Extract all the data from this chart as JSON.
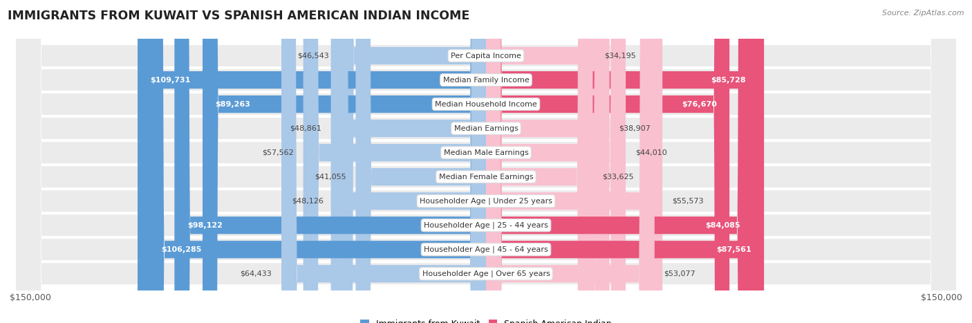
{
  "title": "IMMIGRANTS FROM KUWAIT VS SPANISH AMERICAN INDIAN INCOME",
  "source": "Source: ZipAtlas.com",
  "categories": [
    "Per Capita Income",
    "Median Family Income",
    "Median Household Income",
    "Median Earnings",
    "Median Male Earnings",
    "Median Female Earnings",
    "Householder Age | Under 25 years",
    "Householder Age | 25 - 44 years",
    "Householder Age | 45 - 64 years",
    "Householder Age | Over 65 years"
  ],
  "kuwait_values": [
    46543,
    109731,
    89263,
    48861,
    57562,
    41055,
    48126,
    98122,
    106285,
    64433
  ],
  "spanish_values": [
    34195,
    85728,
    76670,
    38907,
    44010,
    33625,
    55573,
    84085,
    87561,
    53077
  ],
  "kuwait_color_light": "#aac8e8",
  "kuwait_color_dark": "#5b9bd5",
  "spanish_color_light": "#f9c0d0",
  "spanish_color_dark": "#e8547a",
  "row_bg_color": "#ebebeb",
  "max_value": 150000,
  "xlabel_left": "$150,000",
  "xlabel_right": "$150,000",
  "legend_kuwait": "Immigrants from Kuwait",
  "legend_spanish": "Spanish American Indian",
  "title_fontsize": 12.5,
  "label_fontsize": 8,
  "value_fontsize": 8,
  "inside_threshold": 70000
}
